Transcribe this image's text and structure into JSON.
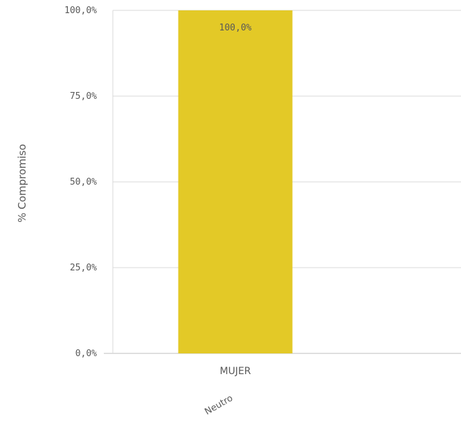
{
  "chart_data": {
    "type": "bar",
    "categories": [
      "MUJER"
    ],
    "values": [
      100.0
    ],
    "data_labels": [
      "100,0%"
    ],
    "group_label": "Neutro",
    "xlabel": "",
    "ylabel": "% Compromiso",
    "ylim": [
      0,
      100
    ],
    "yticks": [
      {
        "value": 0,
        "label": "0,0%"
      },
      {
        "value": 25,
        "label": "25,0%"
      },
      {
        "value": 50,
        "label": "50,0%"
      },
      {
        "value": 75,
        "label": "75,0%"
      },
      {
        "value": 100,
        "label": "100,0%"
      }
    ],
    "grid": true,
    "colors": {
      "bar": "#e3c927",
      "grid": "#d9d9d9",
      "text": "#595959",
      "axis": "#bfbfbf"
    }
  }
}
